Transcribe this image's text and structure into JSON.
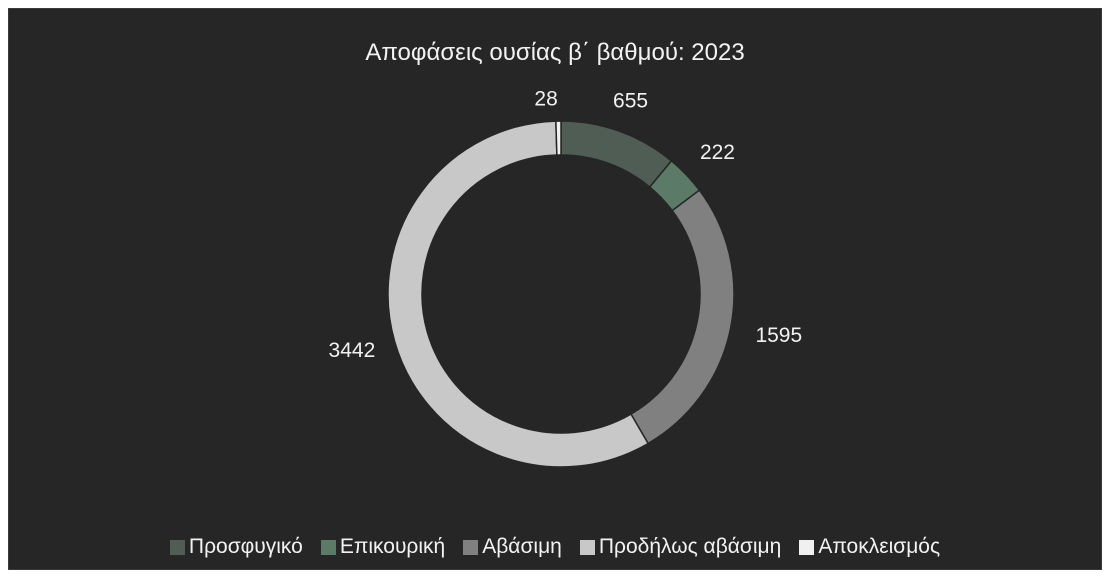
{
  "chart_data": {
    "type": "pie",
    "variant": "donut",
    "title": "Αποφάσεις ουσίας β΄ βαθμού: 2023",
    "categories": [
      "Προσφυγικό",
      "Επικουρική",
      "Αβάσιμη",
      "Προδήλως αβάσιμη",
      "Αποκλεισμός"
    ],
    "values": [
      655,
      222,
      1595,
      3442,
      28
    ],
    "colors": [
      "#4f5d54",
      "#5c7a68",
      "#808080",
      "#c8c8c8",
      "#f0f0f0"
    ],
    "data_labels": [
      "655",
      "222",
      "1595",
      "3442",
      "28"
    ],
    "legend_position": "bottom",
    "background": "#262626"
  }
}
